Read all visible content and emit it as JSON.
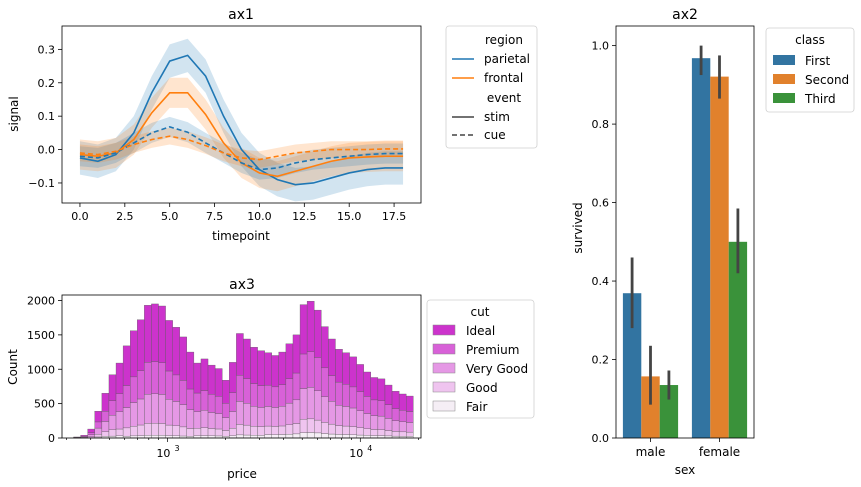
{
  "chart_data": [
    {
      "id": "ax1",
      "type": "line",
      "title": "ax1",
      "xlabel": "timepoint",
      "ylabel": "signal",
      "xlim": [
        -1,
        19
      ],
      "ylim": [
        -0.16,
        0.37
      ],
      "xticks": [
        0.0,
        2.5,
        5.0,
        7.5,
        10.0,
        12.5,
        15.0,
        17.5
      ],
      "xtick_labels": [
        "0.0",
        "2.5",
        "5.0",
        "7.5",
        "10.0",
        "12.5",
        "15.0",
        "17.5"
      ],
      "yticks": [
        -0.1,
        0.0,
        0.1,
        0.2,
        0.3
      ],
      "ytick_labels": [
        "−0.1",
        "0.0",
        "0.1",
        "0.2",
        "0.3"
      ],
      "legend": {
        "placement": "outside-right",
        "groups": [
          {
            "title": "region",
            "entries": [
              {
                "label": "parietal",
                "color": "#1f77b4",
                "dash": "solid"
              },
              {
                "label": "frontal",
                "color": "#ff7f0e",
                "dash": "solid"
              }
            ]
          },
          {
            "title": "event",
            "entries": [
              {
                "label": "stim",
                "color": "#444444",
                "dash": "solid"
              },
              {
                "label": "cue",
                "color": "#444444",
                "dash": "dashed"
              }
            ]
          }
        ]
      },
      "x": [
        0,
        1,
        2,
        3,
        4,
        5,
        6,
        7,
        8,
        9,
        10,
        11,
        12,
        13,
        14,
        15,
        16,
        17,
        18
      ],
      "series": [
        {
          "region": "parietal",
          "event": "stim",
          "color": "#1f77b4",
          "dash": "solid",
          "values": [
            -0.025,
            -0.035,
            -0.015,
            0.05,
            0.17,
            0.265,
            0.282,
            0.22,
            0.1,
            0.0,
            -0.06,
            -0.09,
            -0.105,
            -0.1,
            -0.085,
            -0.07,
            -0.06,
            -0.055,
            -0.055
          ],
          "band": 0.05
        },
        {
          "region": "frontal",
          "event": "stim",
          "color": "#ff7f0e",
          "dash": "solid",
          "values": [
            -0.015,
            -0.02,
            -0.01,
            0.03,
            0.11,
            0.17,
            0.17,
            0.105,
            0.02,
            -0.04,
            -0.07,
            -0.08,
            -0.065,
            -0.05,
            -0.035,
            -0.025,
            -0.022,
            -0.02,
            -0.02
          ],
          "band": 0.045
        },
        {
          "region": "parietal",
          "event": "cue",
          "color": "#1f77b4",
          "dash": "dashed",
          "values": [
            -0.02,
            -0.025,
            -0.01,
            0.02,
            0.05,
            0.068,
            0.052,
            0.02,
            -0.01,
            -0.04,
            -0.06,
            -0.055,
            -0.04,
            -0.03,
            -0.025,
            -0.02,
            -0.015,
            -0.012,
            -0.012
          ],
          "band": 0.03
        },
        {
          "region": "frontal",
          "event": "cue",
          "color": "#ff7f0e",
          "dash": "dashed",
          "values": [
            -0.01,
            -0.015,
            -0.005,
            0.015,
            0.03,
            0.04,
            0.03,
            0.012,
            -0.01,
            -0.025,
            -0.03,
            -0.02,
            -0.01,
            -0.005,
            0.0,
            0.0,
            0.0,
            0.002,
            0.002
          ],
          "band": 0.025
        }
      ]
    },
    {
      "id": "ax2",
      "type": "bar",
      "title": "ax2",
      "xlabel": "sex",
      "ylabel": "survived",
      "categories": [
        "male",
        "female"
      ],
      "ylim": [
        0,
        1.05
      ],
      "yticks": [
        0.0,
        0.2,
        0.4,
        0.6,
        0.8,
        1.0
      ],
      "ytick_labels": [
        "0.0",
        "0.2",
        "0.4",
        "0.6",
        "0.8",
        "1.0"
      ],
      "legend": {
        "title": "class",
        "placement": "outside-right"
      },
      "series": [
        {
          "name": "First",
          "color": "#3274a1",
          "values": [
            0.369,
            0.968
          ],
          "ci": [
            [
              0.28,
              0.46
            ],
            [
              0.925,
              1.0
            ]
          ]
        },
        {
          "name": "Second",
          "color": "#e1812c",
          "values": [
            0.157,
            0.921
          ],
          "ci": [
            [
              0.085,
              0.235
            ],
            [
              0.865,
              0.975
            ]
          ]
        },
        {
          "name": "Third",
          "color": "#3a923a",
          "values": [
            0.135,
            0.5
          ],
          "ci": [
            [
              0.098,
              0.172
            ],
            [
              0.42,
              0.585
            ]
          ]
        }
      ]
    },
    {
      "id": "ax3",
      "type": "bar",
      "subtype": "stacked-histogram",
      "title": "ax3",
      "xlabel": "price",
      "ylabel": "Count",
      "xscale": "log",
      "xlim": [
        326,
        18823
      ],
      "ylim": [
        0,
        2080
      ],
      "yticks": [
        0,
        500,
        1000,
        1500,
        2000
      ],
      "ytick_labels": [
        "0",
        "500",
        "1000",
        "1500",
        "2000"
      ],
      "xtick_values": [
        1000,
        10000
      ],
      "xtick_labels": [
        {
          "base": "10",
          "exp": "3"
        },
        {
          "base": "10",
          "exp": "4"
        }
      ],
      "legend": {
        "title": "cut",
        "placement": "outside-right"
      },
      "stack_order": [
        "Fair",
        "Good",
        "Very Good",
        "Premium",
        "Ideal"
      ],
      "series_colors": {
        "Ideal": "#cc33cc",
        "Premium": "#d861d8",
        "Very Good": "#e598e5",
        "Good": "#efc4ef",
        "Fair": "#f5eef5"
      },
      "legend_order": [
        "Ideal",
        "Premium",
        "Very Good",
        "Good",
        "Fair"
      ],
      "totals": [
        15,
        40,
        130,
        390,
        650,
        920,
        1090,
        1340,
        1560,
        1720,
        1930,
        1950,
        1920,
        1710,
        1610,
        1470,
        1250,
        1090,
        1150,
        1060,
        1010,
        840,
        1100,
        1520,
        1440,
        1320,
        1270,
        1240,
        1200,
        1250,
        1370,
        1500,
        1940,
        1990,
        1860,
        1620,
        1440,
        1290,
        1240,
        1180,
        1070,
        960,
        880,
        860,
        770,
        680,
        640,
        610
      ],
      "fractions": {
        "Fair": [
          0.04,
          0.04,
          0.04,
          0.04,
          0.04,
          0.03,
          0.03,
          0.02,
          0.02,
          0.02,
          0.02,
          0.02,
          0.02,
          0.02,
          0.02,
          0.02,
          0.02,
          0.03,
          0.03,
          0.03,
          0.03,
          0.03,
          0.03,
          0.03,
          0.03,
          0.03,
          0.03,
          0.04,
          0.04,
          0.04,
          0.04,
          0.04,
          0.04,
          0.04,
          0.04,
          0.04,
          0.04,
          0.04,
          0.04,
          0.04,
          0.04,
          0.04,
          0.04,
          0.04,
          0.04,
          0.04,
          0.04,
          0.04
        ],
        "Good": [
          0.1,
          0.1,
          0.1,
          0.1,
          0.1,
          0.1,
          0.09,
          0.09,
          0.09,
          0.09,
          0.09,
          0.09,
          0.09,
          0.09,
          0.09,
          0.09,
          0.09,
          0.1,
          0.1,
          0.1,
          0.1,
          0.1,
          0.1,
          0.1,
          0.1,
          0.1,
          0.1,
          0.1,
          0.1,
          0.1,
          0.1,
          0.1,
          0.1,
          0.1,
          0.1,
          0.1,
          0.1,
          0.1,
          0.1,
          0.1,
          0.1,
          0.1,
          0.1,
          0.1,
          0.1,
          0.1,
          0.1,
          0.1
        ],
        "Very Good": [
          0.23,
          0.23,
          0.23,
          0.23,
          0.23,
          0.23,
          0.23,
          0.22,
          0.22,
          0.22,
          0.22,
          0.22,
          0.22,
          0.22,
          0.22,
          0.22,
          0.22,
          0.22,
          0.22,
          0.22,
          0.22,
          0.22,
          0.22,
          0.22,
          0.22,
          0.22,
          0.22,
          0.23,
          0.23,
          0.23,
          0.23,
          0.23,
          0.23,
          0.23,
          0.23,
          0.23,
          0.23,
          0.23,
          0.23,
          0.23,
          0.23,
          0.23,
          0.23,
          0.23,
          0.23,
          0.23,
          0.23,
          0.23
        ],
        "Premium": [
          0.23,
          0.23,
          0.23,
          0.23,
          0.23,
          0.23,
          0.24,
          0.24,
          0.24,
          0.24,
          0.24,
          0.24,
          0.24,
          0.24,
          0.24,
          0.24,
          0.24,
          0.25,
          0.25,
          0.25,
          0.25,
          0.25,
          0.25,
          0.25,
          0.25,
          0.25,
          0.25,
          0.25,
          0.25,
          0.25,
          0.26,
          0.26,
          0.26,
          0.26,
          0.26,
          0.26,
          0.26,
          0.26,
          0.26,
          0.26,
          0.26,
          0.26,
          0.26,
          0.26,
          0.26,
          0.26,
          0.26,
          0.26
        ],
        "Ideal": [
          0.4,
          0.4,
          0.4,
          0.4,
          0.4,
          0.41,
          0.41,
          0.43,
          0.43,
          0.43,
          0.43,
          0.43,
          0.43,
          0.43,
          0.43,
          0.43,
          0.43,
          0.4,
          0.4,
          0.4,
          0.4,
          0.4,
          0.4,
          0.4,
          0.4,
          0.4,
          0.4,
          0.38,
          0.38,
          0.38,
          0.37,
          0.37,
          0.37,
          0.37,
          0.37,
          0.37,
          0.37,
          0.37,
          0.37,
          0.37,
          0.37,
          0.37,
          0.37,
          0.37,
          0.37,
          0.37,
          0.37,
          0.37
        ]
      }
    }
  ]
}
